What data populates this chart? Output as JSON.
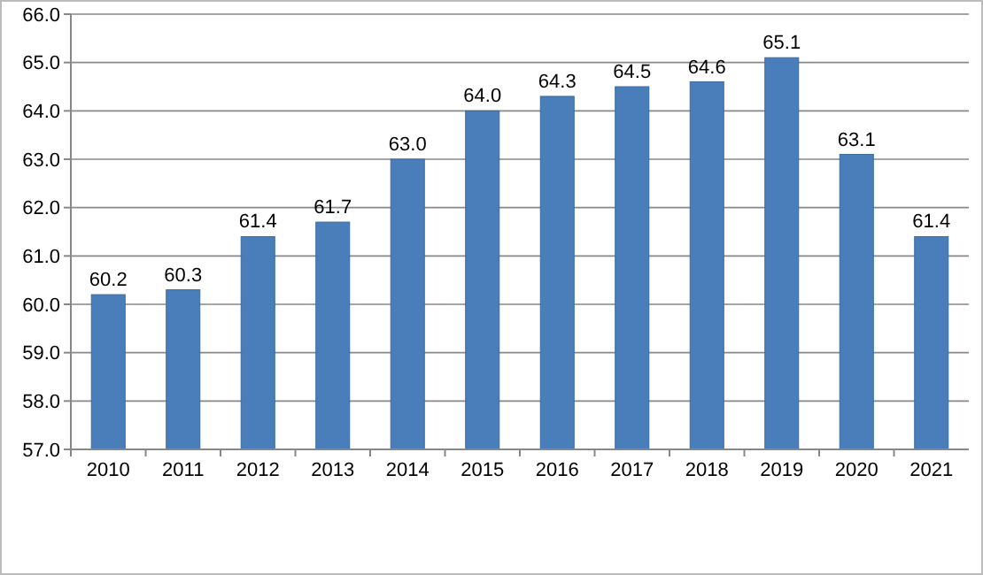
{
  "chart_data": {
    "type": "bar",
    "categories": [
      "2010",
      "2011",
      "2012",
      "2013",
      "2014",
      "2015",
      "2016",
      "2017",
      "2018",
      "2019",
      "2020",
      "2021"
    ],
    "values": [
      60.2,
      60.3,
      61.4,
      61.7,
      63.0,
      64.0,
      64.3,
      64.5,
      64.6,
      65.1,
      63.1,
      61.4
    ],
    "value_labels": [
      "60.2",
      "60.3",
      "61.4",
      "61.7",
      "63.0",
      "64.0",
      "64.3",
      "64.5",
      "64.6",
      "65.1",
      "63.1",
      "61.4"
    ],
    "color": "#4a7ebb",
    "ylim": [
      57,
      66
    ],
    "yticks": [
      {
        "value": 57,
        "label": "57.0"
      },
      {
        "value": 58,
        "label": "58.0"
      },
      {
        "value": 59,
        "label": "59.0"
      },
      {
        "value": 60,
        "label": "60.0"
      },
      {
        "value": 61,
        "label": "61.0"
      },
      {
        "value": 62,
        "label": "62.0"
      },
      {
        "value": 63,
        "label": "63.0"
      },
      {
        "value": 64,
        "label": "64.0"
      },
      {
        "value": 65,
        "label": "65.0"
      },
      {
        "value": 66,
        "label": "66.0"
      }
    ],
    "grid": "y"
  }
}
